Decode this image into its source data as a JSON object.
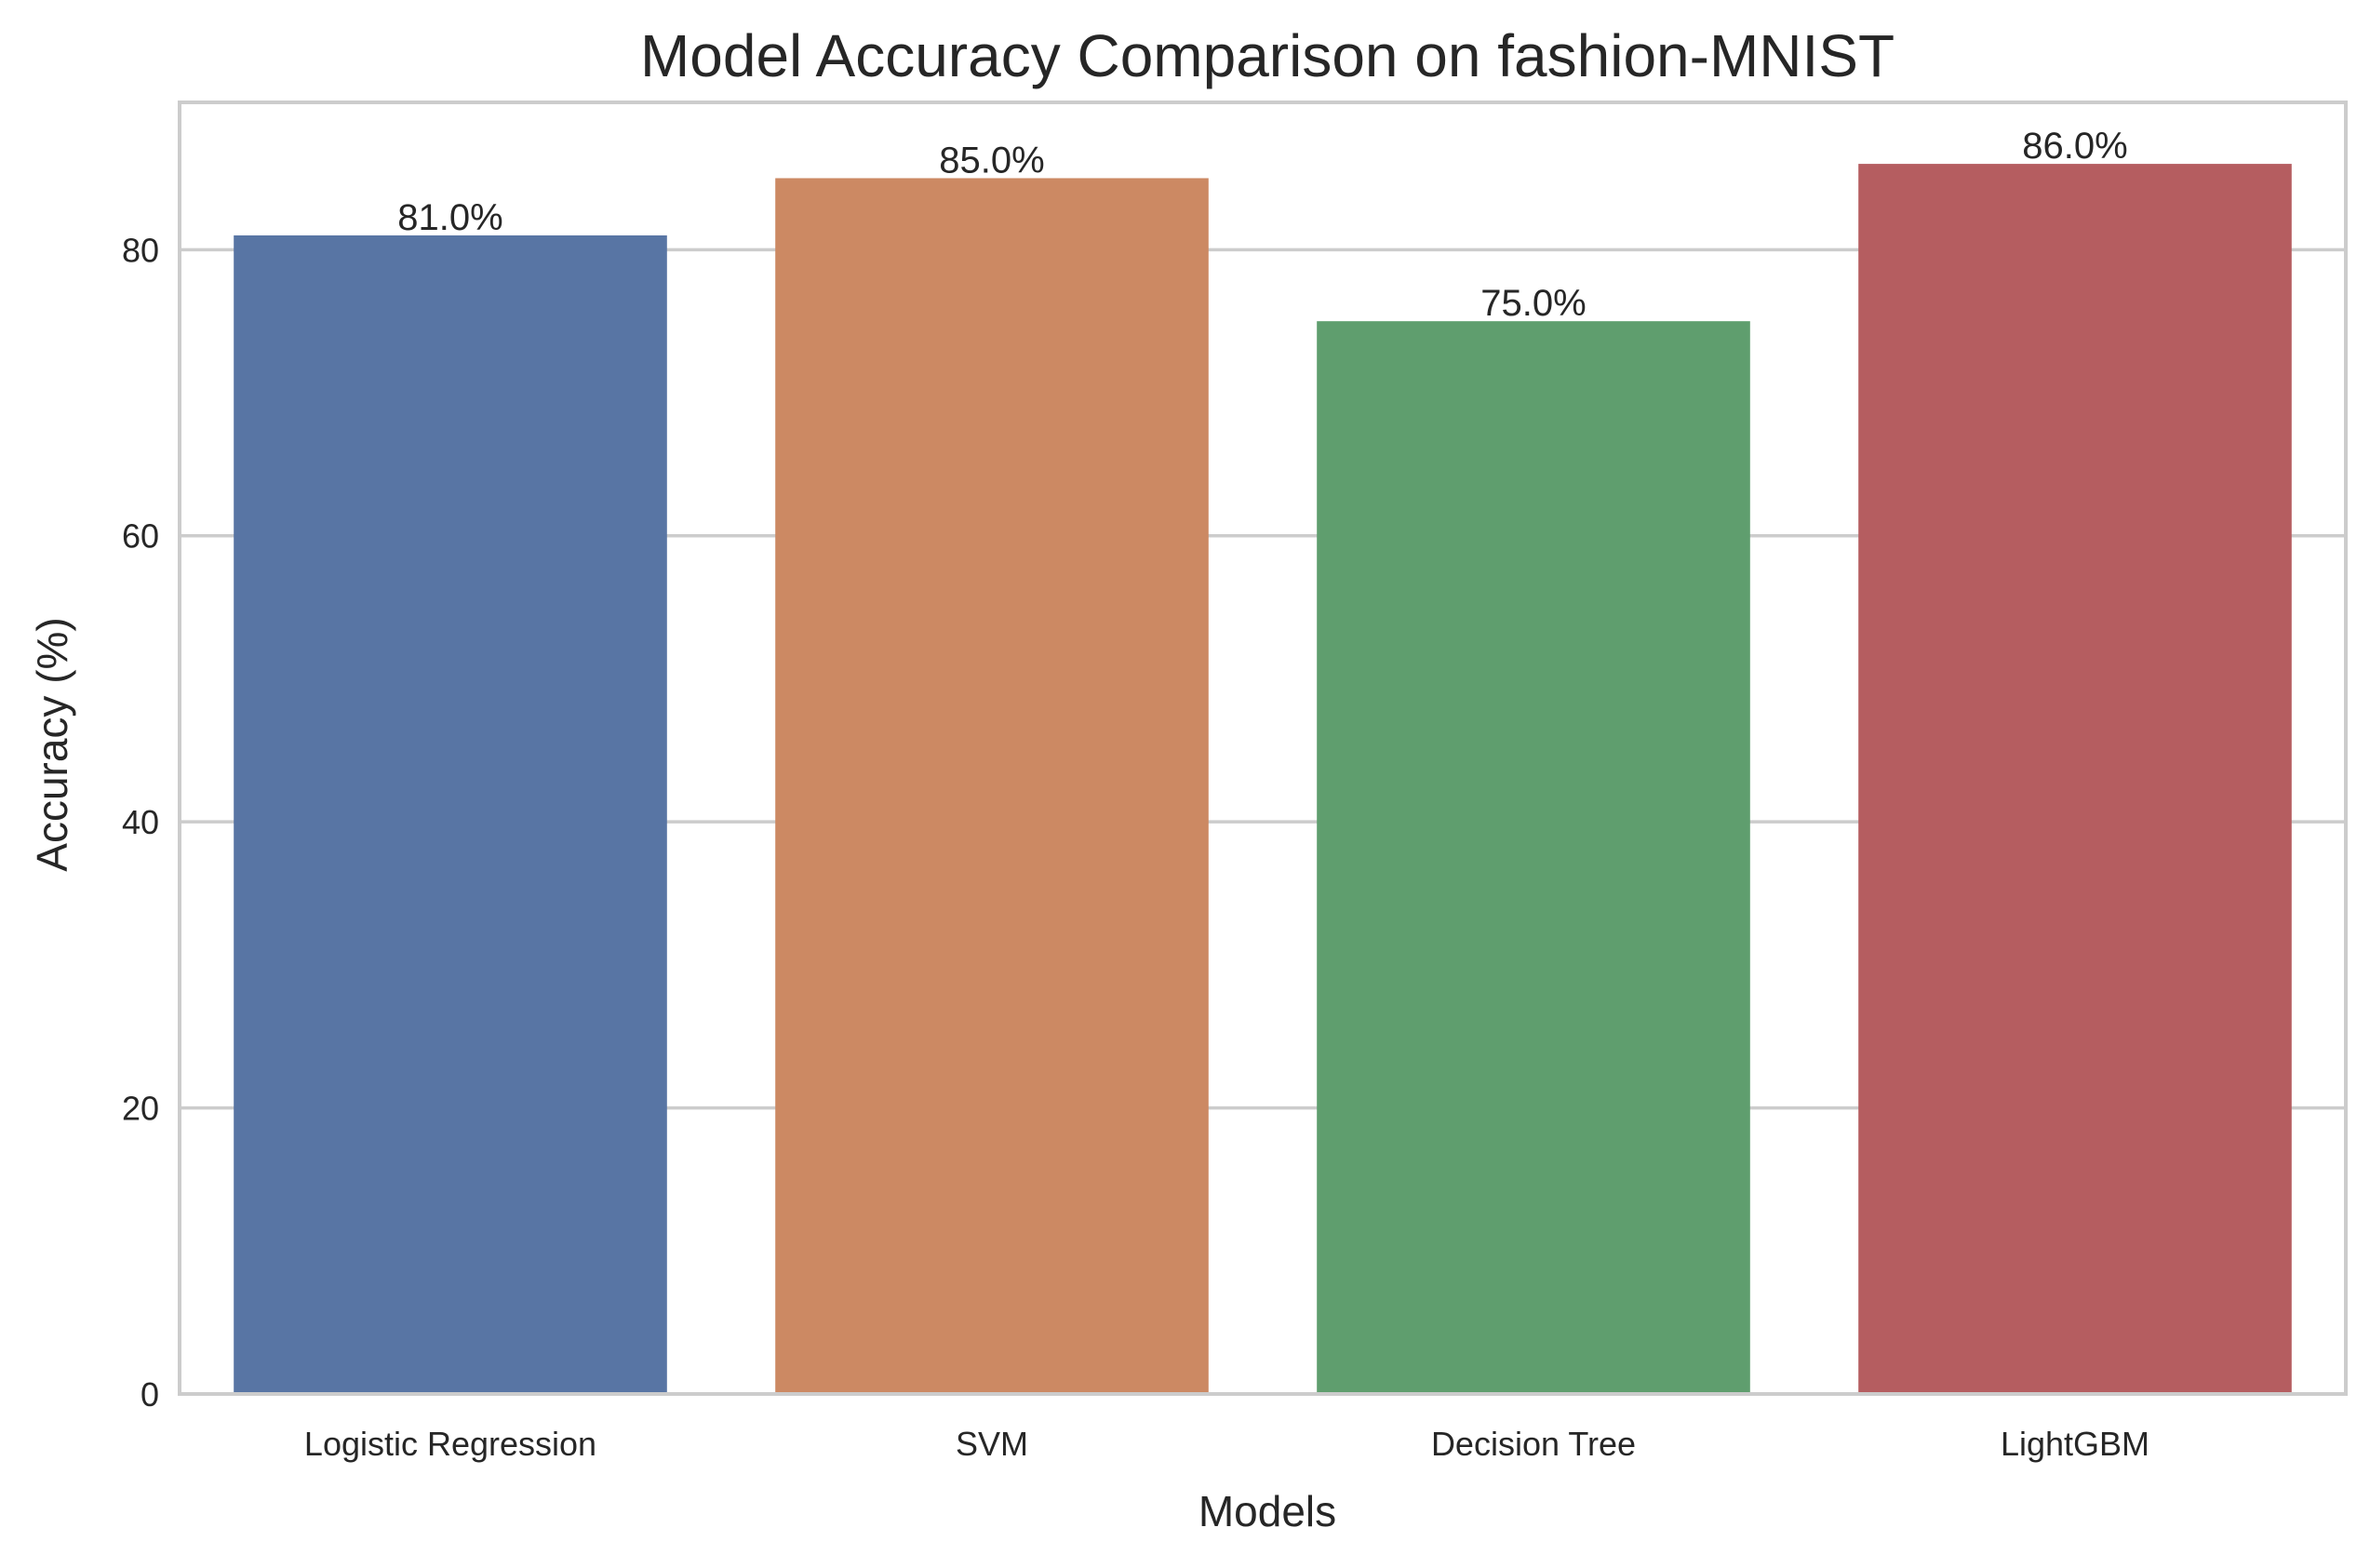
{
  "chart_data": {
    "type": "bar",
    "title": "Model Accuracy Comparison on fashion-MNIST",
    "xlabel": "Models",
    "ylabel": "Accuracy (%)",
    "categories": [
      "Logistic Regression",
      "SVM",
      "Decision Tree",
      "LightGBM"
    ],
    "values": [
      81.0,
      85.0,
      75.0,
      86.0
    ],
    "data_labels": [
      "81.0%",
      "85.0%",
      "75.0%",
      "86.0%"
    ],
    "colors": [
      "#5875a4",
      "#cc8963",
      "#5f9e6e",
      "#b55d60"
    ],
    "ylim": [
      0,
      90.3
    ],
    "yticks": [
      0,
      20,
      40,
      60,
      80
    ],
    "grid": true,
    "legend": "none"
  }
}
